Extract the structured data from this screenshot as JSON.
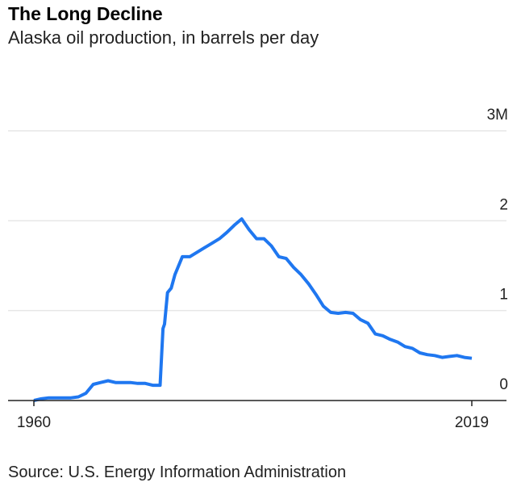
{
  "chart_data": {
    "type": "line",
    "title": "The Long Decline",
    "subtitle": "Alaska oil production, in barrels per day",
    "source": "Source: U.S. Energy Information Administration",
    "xlabel": "",
    "ylabel": "",
    "xlim": [
      1960,
      2019
    ],
    "ylim": [
      0,
      3000000
    ],
    "x_tick_labels": [
      "1960",
      "2019"
    ],
    "y_tick_labels": [
      "0",
      "1",
      "2",
      "3M"
    ],
    "grid": true,
    "line_color": "#1f77f0",
    "series": [
      {
        "x": [
          1960,
          1961,
          1962,
          1963,
          1964,
          1965,
          1966,
          1967,
          1968,
          1969,
          1970,
          1971,
          1972,
          1973,
          1974,
          1975,
          1976,
          1977,
          1977.4,
          1977.6,
          1978,
          1978.5,
          1979,
          1980,
          1981,
          1982,
          1983,
          1984,
          1985,
          1986,
          1987,
          1988,
          1989,
          1990,
          1991,
          1992,
          1993,
          1994,
          1995,
          1996,
          1997,
          1998,
          1999,
          2000,
          2001,
          2002,
          2003,
          2004,
          2005,
          2006,
          2007,
          2008,
          2009,
          2010,
          2011,
          2012,
          2013,
          2014,
          2015,
          2016,
          2017,
          2018,
          2019
        ],
        "values": [
          0,
          20000,
          30000,
          30000,
          30000,
          30000,
          40000,
          80000,
          180000,
          200000,
          220000,
          200000,
          200000,
          200000,
          190000,
          190000,
          170000,
          170000,
          800000,
          850000,
          1200000,
          1250000,
          1400000,
          1600000,
          1600000,
          1650000,
          1700000,
          1750000,
          1800000,
          1870000,
          1950000,
          2020000,
          1900000,
          1800000,
          1800000,
          1720000,
          1600000,
          1580000,
          1480000,
          1400000,
          1300000,
          1180000,
          1050000,
          980000,
          970000,
          980000,
          970000,
          900000,
          860000,
          740000,
          720000,
          680000,
          650000,
          600000,
          580000,
          530000,
          510000,
          500000,
          480000,
          490000,
          500000,
          480000,
          470000
        ]
      }
    ]
  }
}
